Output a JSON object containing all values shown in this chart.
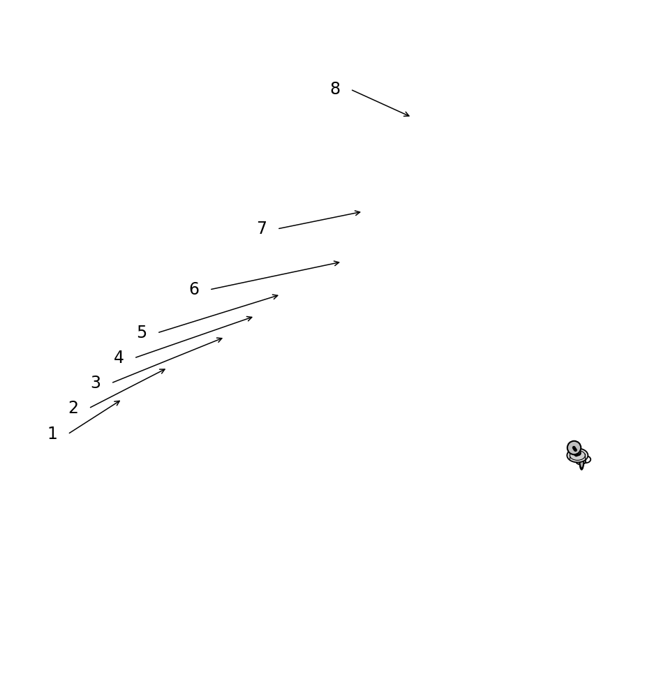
{
  "background_color": "#ffffff",
  "line_color": "#000000",
  "line_width": 1.3,
  "label_fontsize": 17,
  "fc_top": "#f2f2f2",
  "fc_front": "#e0e0e0",
  "fc_right": "#cccccc",
  "fc_light_top": "#f8f8f8",
  "fc_light_front": "#ebebeb",
  "fc_light_right": "#d8d8d8"
}
